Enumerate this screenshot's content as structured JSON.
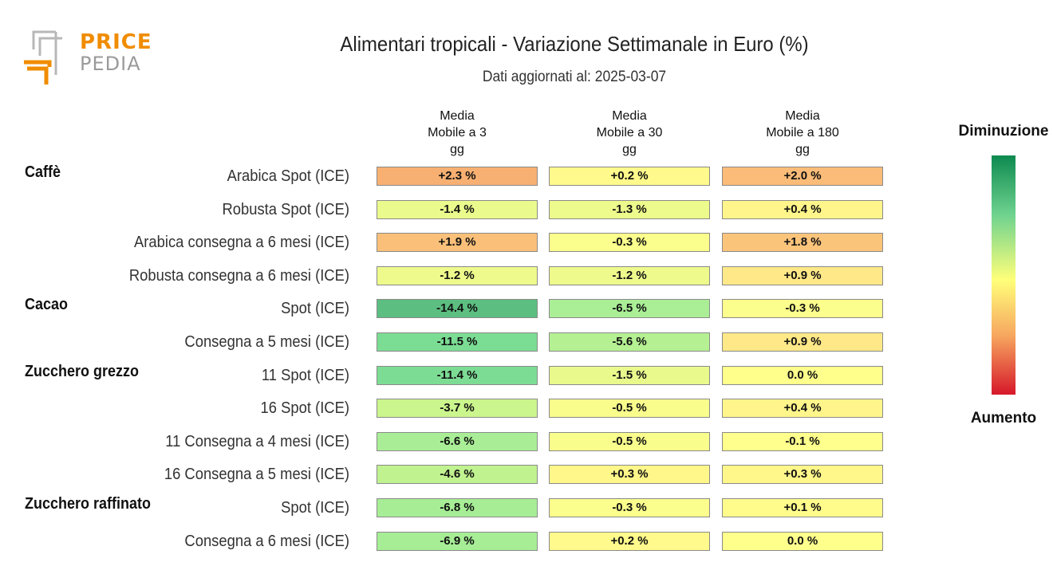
{
  "logo": {
    "word1": "PRICE",
    "word2": "PEDIA"
  },
  "title": "Alimentari tropicali - Variazione Settimanale in Euro (%)",
  "subtitle": "Dati aggiornati al: 2025-03-07",
  "legend": {
    "top": "Diminuzione",
    "bottom": "Aumento"
  },
  "colors": {
    "decrease_strong": "#0e8a50",
    "neutral": "#ffff7a",
    "increase_strong": "#d6182a"
  },
  "chart_data": {
    "type": "heatmap",
    "title": "Alimentari tropicali - Variazione Settimanale in Euro (%)",
    "columns": [
      "Media\nMobile a 3\ngg",
      "Media\nMobile a 30\ngg",
      "Media\nMobile a 180\ngg"
    ],
    "groups": [
      {
        "name": "Caffè",
        "rows": [
          {
            "label": "Arabica Spot (ICE)",
            "values": [
              2.3,
              0.2,
              2.0
            ],
            "texts": [
              "+2.3 %",
              "+0.2 %",
              "+2.0 %"
            ]
          },
          {
            "label": "Robusta Spot (ICE)",
            "values": [
              -1.4,
              -1.3,
              0.4
            ],
            "texts": [
              "-1.4 %",
              "-1.3 %",
              "+0.4 %"
            ]
          },
          {
            "label": "Arabica consegna a 6 mesi (ICE)",
            "values": [
              1.9,
              -0.3,
              1.8
            ],
            "texts": [
              "+1.9 %",
              "-0.3 %",
              "+1.8 %"
            ]
          },
          {
            "label": "Robusta consegna a 6 mesi (ICE)",
            "values": [
              -1.2,
              -1.2,
              0.9
            ],
            "texts": [
              "-1.2 %",
              "-1.2 %",
              "+0.9 %"
            ]
          }
        ]
      },
      {
        "name": "Cacao",
        "rows": [
          {
            "label": "Spot (ICE)",
            "values": [
              -14.4,
              -6.5,
              -0.3
            ],
            "texts": [
              "-14.4 %",
              "-6.5 %",
              "-0.3 %"
            ]
          },
          {
            "label": "Consegna a 5 mesi (ICE)",
            "values": [
              -11.5,
              -5.6,
              0.9
            ],
            "texts": [
              "-11.5 %",
              "-5.6 %",
              "+0.9 %"
            ]
          }
        ]
      },
      {
        "name": "Zucchero grezzo",
        "rows": [
          {
            "label": "11 Spot (ICE)",
            "values": [
              -11.4,
              -1.5,
              0.0
            ],
            "texts": [
              "-11.4 %",
              "-1.5 %",
              "0.0 %"
            ]
          },
          {
            "label": "16 Spot (ICE)",
            "values": [
              -3.7,
              -0.5,
              0.4
            ],
            "texts": [
              "-3.7 %",
              "-0.5 %",
              "+0.4 %"
            ]
          },
          {
            "label": "11 Consegna a 4 mesi (ICE)",
            "values": [
              -6.6,
              -0.5,
              -0.1
            ],
            "texts": [
              "-6.6 %",
              "-0.5 %",
              "-0.1 %"
            ]
          },
          {
            "label": "16 Consegna a 5 mesi (ICE)",
            "values": [
              -4.6,
              0.3,
              0.3
            ],
            "texts": [
              "-4.6 %",
              "+0.3 %",
              "+0.3 %"
            ]
          }
        ]
      },
      {
        "name": "Zucchero raffinato",
        "rows": [
          {
            "label": "Spot (ICE)",
            "values": [
              -6.8,
              -0.3,
              0.1
            ],
            "texts": [
              "-6.8 %",
              "-0.3 %",
              "+0.1 %"
            ]
          },
          {
            "label": "Consegna a 6 mesi (ICE)",
            "values": [
              -6.9,
              0.2,
              0.0
            ],
            "texts": [
              "-6.9 %",
              "+0.2 %",
              "0.0 %"
            ]
          }
        ]
      }
    ]
  }
}
